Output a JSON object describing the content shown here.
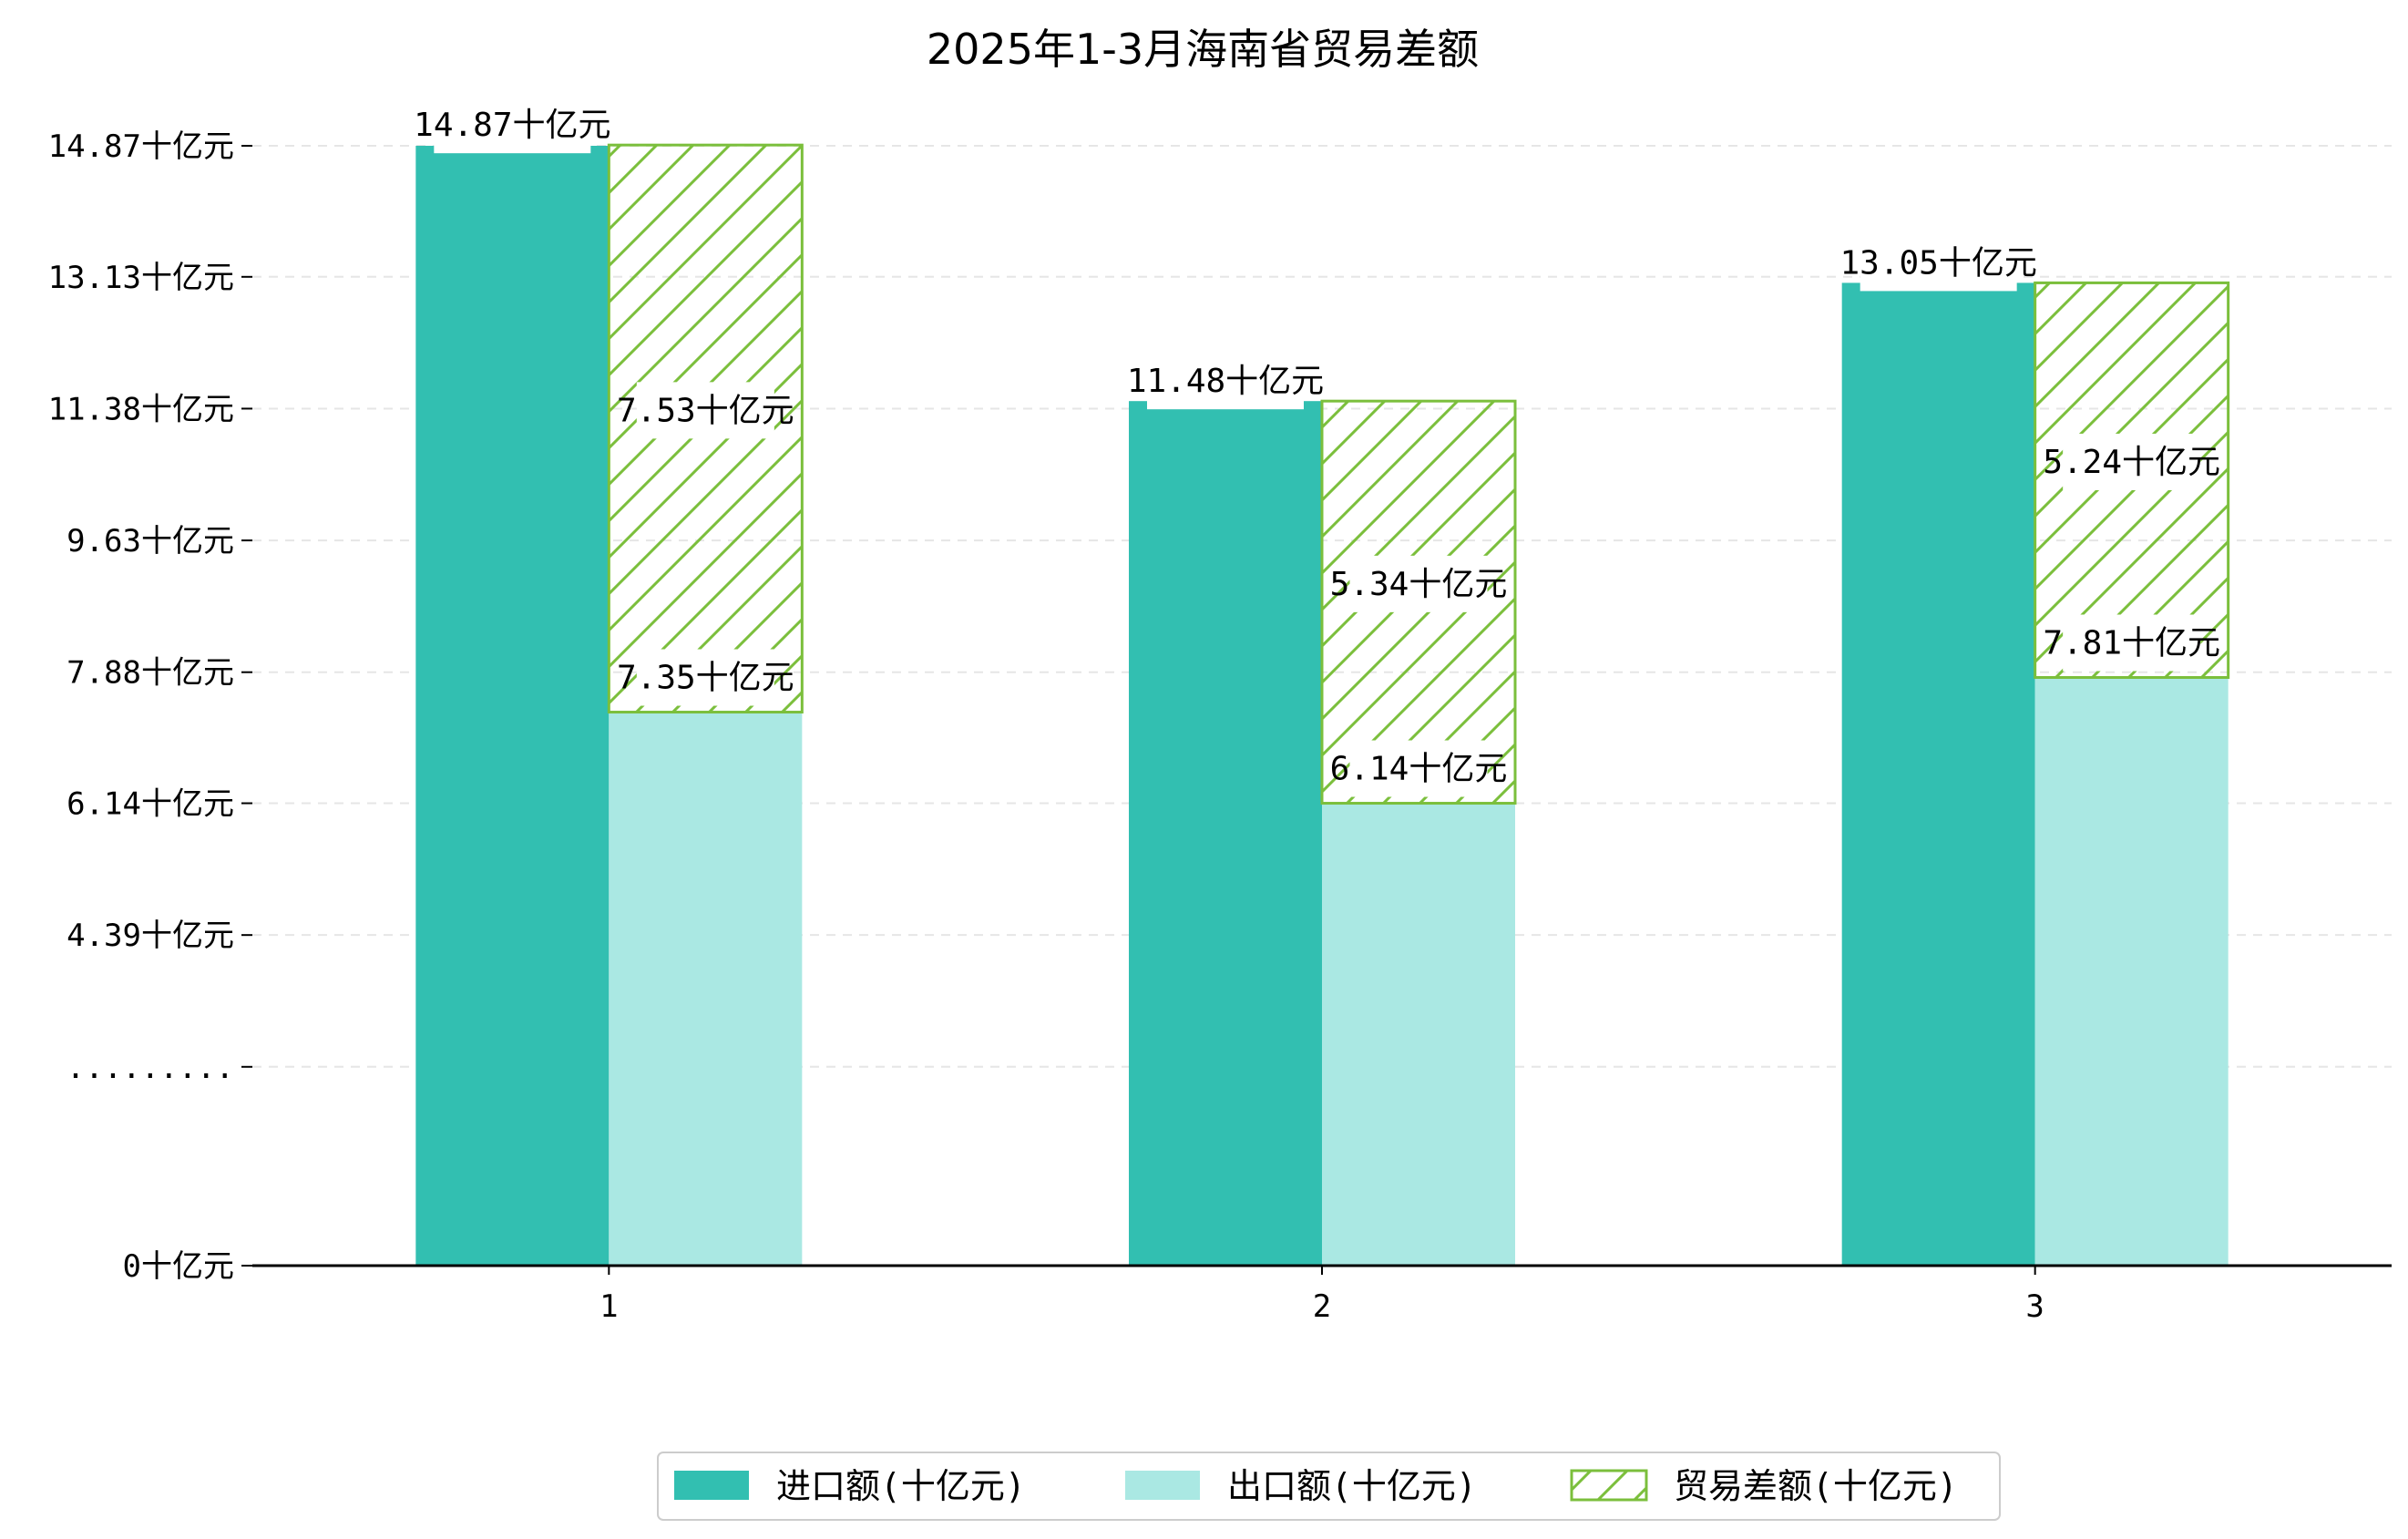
{
  "chart_data": {
    "type": "bar",
    "title": "2025年1-3月海南省贸易差额",
    "categories": [
      "1",
      "2",
      "3"
    ],
    "series": [
      {
        "name": "进口额(十亿元)",
        "values": [
          14.87,
          11.48,
          13.05
        ],
        "color": "#32bfb1",
        "labels": [
          "14.87十亿元",
          "11.48十亿元",
          "13.05十亿元"
        ]
      },
      {
        "name": "出口额(十亿元)",
        "values": [
          7.35,
          6.14,
          7.81
        ],
        "color": "#aae8e3",
        "labels": [
          "7.35十亿元",
          "6.14十亿元",
          "7.81十亿元"
        ]
      },
      {
        "name": "贸易差额(十亿元)",
        "values": [
          7.53,
          5.34,
          5.24
        ],
        "color": "#7bbf3c",
        "pattern": "hatch",
        "labels": [
          "7.53十亿元",
          "5.34十亿元",
          "5.24十亿元"
        ]
      }
    ],
    "y_ticks": [
      {
        "value": 0,
        "label": "0十亿元"
      },
      {
        "value": 2.64,
        "label": "........."
      },
      {
        "value": 4.39,
        "label": "4.39十亿元"
      },
      {
        "value": 6.14,
        "label": "6.14十亿元"
      },
      {
        "value": 7.88,
        "label": "7.88十亿元"
      },
      {
        "value": 9.63,
        "label": "9.63十亿元"
      },
      {
        "value": 11.38,
        "label": "11.38十亿元"
      },
      {
        "value": 13.13,
        "label": "13.13十亿元"
      },
      {
        "value": 14.87,
        "label": "14.87十亿元"
      }
    ],
    "ylim": [
      0,
      14.87
    ],
    "xlabel": "",
    "ylabel": "",
    "grid": true,
    "legend_position": "bottom"
  }
}
